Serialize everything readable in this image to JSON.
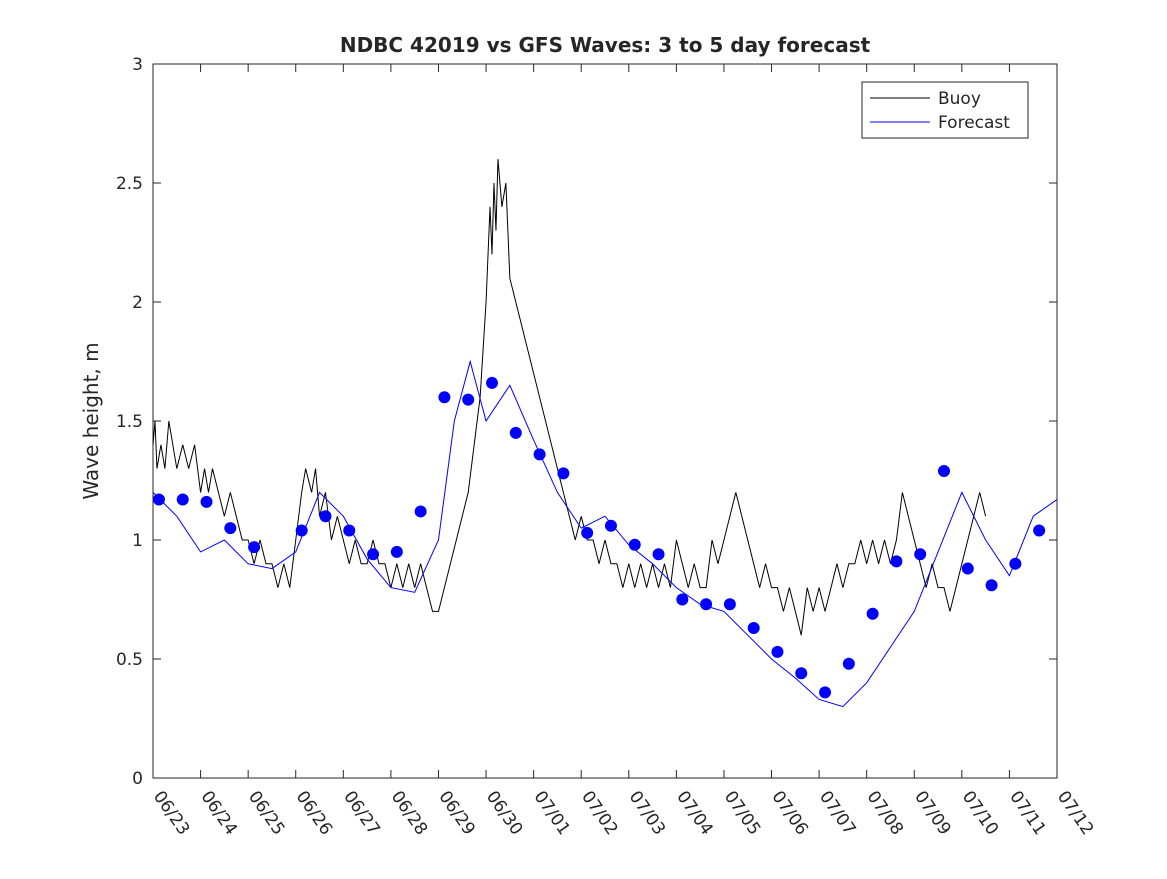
{
  "chart_data": {
    "type": "line",
    "title": "NDBC 42019 vs GFS Waves: 3 to 5 day forecast",
    "xlabel": "",
    "ylabel": "Wave height, m",
    "xlim": [
      "06/23",
      "07/12"
    ],
    "ylim": [
      0,
      3
    ],
    "x_tick_labels": [
      "06/23",
      "06/24",
      "06/25",
      "06/26",
      "06/27",
      "06/28",
      "06/29",
      "06/30",
      "07/01",
      "07/02",
      "07/03",
      "07/04",
      "07/05",
      "07/06",
      "07/07",
      "07/08",
      "07/09",
      "07/10",
      "07/11",
      "07/12"
    ],
    "y_tick_values": [
      0,
      0.5,
      1,
      1.5,
      2,
      2.5,
      3
    ],
    "y_tick_labels": [
      "0",
      "0.5",
      "1",
      "1.5",
      "2",
      "2.5",
      "3"
    ],
    "grid": false,
    "legend": {
      "position": "top-right",
      "entries": [
        {
          "label": "Buoy",
          "color": "#000000"
        },
        {
          "label": "Forecast",
          "color": "#0000ff"
        }
      ]
    },
    "series": [
      {
        "name": "Buoy",
        "color": "#000000",
        "points": [
          [
            "06/23 00:00",
            1.4
          ],
          [
            "06/23 01:00",
            1.5
          ],
          [
            "06/23 02:00",
            1.3
          ],
          [
            "06/23 04:00",
            1.4
          ],
          [
            "06/23 06:00",
            1.3
          ],
          [
            "06/23 08:00",
            1.5
          ],
          [
            "06/23 10:00",
            1.4
          ],
          [
            "06/23 12:00",
            1.3
          ],
          [
            "06/23 15:00",
            1.4
          ],
          [
            "06/23 18:00",
            1.3
          ],
          [
            "06/23 21:00",
            1.4
          ],
          [
            "06/24 00:00",
            1.2
          ],
          [
            "06/24 02:00",
            1.3
          ],
          [
            "06/24 04:00",
            1.2
          ],
          [
            "06/24 06:00",
            1.3
          ],
          [
            "06/24 09:00",
            1.2
          ],
          [
            "06/24 12:00",
            1.1
          ],
          [
            "06/24 15:00",
            1.2
          ],
          [
            "06/24 18:00",
            1.1
          ],
          [
            "06/24 21:00",
            1.0
          ],
          [
            "06/25 00:00",
            1.0
          ],
          [
            "06/25 03:00",
            0.9
          ],
          [
            "06/25 06:00",
            1.0
          ],
          [
            "06/25 09:00",
            0.9
          ],
          [
            "06/25 12:00",
            0.9
          ],
          [
            "06/25 15:00",
            0.8
          ],
          [
            "06/25 18:00",
            0.9
          ],
          [
            "06/25 21:00",
            0.8
          ],
          [
            "06/26 00:00",
            1.0
          ],
          [
            "06/26 03:00",
            1.2
          ],
          [
            "06/26 05:00",
            1.3
          ],
          [
            "06/26 08:00",
            1.2
          ],
          [
            "06/26 10:00",
            1.3
          ],
          [
            "06/26 12:00",
            1.1
          ],
          [
            "06/26 15:00",
            1.2
          ],
          [
            "06/26 18:00",
            1.0
          ],
          [
            "06/26 21:00",
            1.1
          ],
          [
            "06/27 00:00",
            1.0
          ],
          [
            "06/27 03:00",
            0.9
          ],
          [
            "06/27 06:00",
            1.0
          ],
          [
            "06/27 09:00",
            0.9
          ],
          [
            "06/27 12:00",
            0.9
          ],
          [
            "06/27 15:00",
            1.0
          ],
          [
            "06/27 18:00",
            0.9
          ],
          [
            "06/27 21:00",
            0.9
          ],
          [
            "06/28 00:00",
            0.8
          ],
          [
            "06/28 03:00",
            0.9
          ],
          [
            "06/28 06:00",
            0.8
          ],
          [
            "06/28 09:00",
            0.9
          ],
          [
            "06/28 12:00",
            0.8
          ],
          [
            "06/28 15:00",
            0.9
          ],
          [
            "06/28 18:00",
            0.8
          ],
          [
            "06/28 21:00",
            0.7
          ],
          [
            "06/29 00:00",
            0.7
          ],
          [
            "06/29 03:00",
            0.8
          ],
          [
            "06/29 06:00",
            0.9
          ],
          [
            "06/29 09:00",
            1.0
          ],
          [
            "06/29 12:00",
            1.1
          ],
          [
            "06/29 15:00",
            1.2
          ],
          [
            "06/29 18:00",
            1.4
          ],
          [
            "06/29 21:00",
            1.6
          ],
          [
            "06/30 00:00",
            2.0
          ],
          [
            "06/30 02:00",
            2.4
          ],
          [
            "06/30 03:00",
            2.2
          ],
          [
            "06/30 04:00",
            2.5
          ],
          [
            "06/30 05:00",
            2.3
          ],
          [
            "06/30 06:00",
            2.6
          ],
          [
            "06/30 08:00",
            2.4
          ],
          [
            "06/30 10:00",
            2.5
          ],
          [
            "06/30 12:00",
            2.1
          ],
          [
            "06/30 15:00",
            2.0
          ],
          [
            "06/30 18:00",
            1.9
          ],
          [
            "06/30 21:00",
            1.8
          ],
          [
            "07/01 00:00",
            1.7
          ],
          [
            "07/01 03:00",
            1.6
          ],
          [
            "07/01 06:00",
            1.5
          ],
          [
            "07/01 09:00",
            1.4
          ],
          [
            "07/01 12:00",
            1.3
          ],
          [
            "07/01 15:00",
            1.2
          ],
          [
            "07/01 18:00",
            1.1
          ],
          [
            "07/01 21:00",
            1.0
          ],
          [
            "07/02 00:00",
            1.1
          ],
          [
            "07/02 03:00",
            1.0
          ],
          [
            "07/02 06:00",
            1.0
          ],
          [
            "07/02 09:00",
            0.9
          ],
          [
            "07/02 12:00",
            1.0
          ],
          [
            "07/02 15:00",
            0.9
          ],
          [
            "07/02 18:00",
            0.9
          ],
          [
            "07/02 21:00",
            0.8
          ],
          [
            "07/03 00:00",
            0.9
          ],
          [
            "07/03 03:00",
            0.8
          ],
          [
            "07/03 06:00",
            0.9
          ],
          [
            "07/03 09:00",
            0.8
          ],
          [
            "07/03 12:00",
            0.9
          ],
          [
            "07/03 15:00",
            0.8
          ],
          [
            "07/03 18:00",
            0.9
          ],
          [
            "07/03 21:00",
            0.8
          ],
          [
            "07/04 00:00",
            1.0
          ],
          [
            "07/04 03:00",
            0.9
          ],
          [
            "07/04 06:00",
            0.8
          ],
          [
            "07/04 09:00",
            0.9
          ],
          [
            "07/04 12:00",
            0.8
          ],
          [
            "07/04 15:00",
            0.8
          ],
          [
            "07/04 18:00",
            1.0
          ],
          [
            "07/04 21:00",
            0.9
          ],
          [
            "07/05 00:00",
            1.0
          ],
          [
            "07/05 03:00",
            1.1
          ],
          [
            "07/05 06:00",
            1.2
          ],
          [
            "07/05 09:00",
            1.1
          ],
          [
            "07/05 12:00",
            1.0
          ],
          [
            "07/05 15:00",
            0.9
          ],
          [
            "07/05 18:00",
            0.8
          ],
          [
            "07/05 21:00",
            0.9
          ],
          [
            "07/06 00:00",
            0.8
          ],
          [
            "07/06 03:00",
            0.8
          ],
          [
            "07/06 06:00",
            0.7
          ],
          [
            "07/06 09:00",
            0.8
          ],
          [
            "07/06 12:00",
            0.7
          ],
          [
            "07/06 15:00",
            0.6
          ],
          [
            "07/06 18:00",
            0.8
          ],
          [
            "07/06 21:00",
            0.7
          ],
          [
            "07/07 00:00",
            0.8
          ],
          [
            "07/07 03:00",
            0.7
          ],
          [
            "07/07 06:00",
            0.8
          ],
          [
            "07/07 09:00",
            0.9
          ],
          [
            "07/07 12:00",
            0.8
          ],
          [
            "07/07 15:00",
            0.9
          ],
          [
            "07/07 18:00",
            0.9
          ],
          [
            "07/07 21:00",
            1.0
          ],
          [
            "07/08 00:00",
            0.9
          ],
          [
            "07/08 03:00",
            1.0
          ],
          [
            "07/08 06:00",
            0.9
          ],
          [
            "07/08 09:00",
            1.0
          ],
          [
            "07/08 12:00",
            0.9
          ],
          [
            "07/08 15:00",
            1.0
          ],
          [
            "07/08 18:00",
            1.2
          ],
          [
            "07/08 21:00",
            1.1
          ],
          [
            "07/09 00:00",
            1.0
          ],
          [
            "07/09 03:00",
            0.9
          ],
          [
            "07/09 06:00",
            0.8
          ],
          [
            "07/09 09:00",
            0.9
          ],
          [
            "07/09 12:00",
            0.8
          ],
          [
            "07/09 15:00",
            0.8
          ],
          [
            "07/09 18:00",
            0.7
          ],
          [
            "07/09 21:00",
            0.8
          ],
          [
            "07/10 00:00",
            0.9
          ],
          [
            "07/10 03:00",
            1.0
          ],
          [
            "07/10 06:00",
            1.1
          ],
          [
            "07/10 09:00",
            1.2
          ],
          [
            "07/10 12:00",
            1.1
          ]
        ]
      },
      {
        "name": "Forecast",
        "color": "#0000ff",
        "points": [
          [
            "06/23 00:00",
            1.2
          ],
          [
            "06/23 12:00",
            1.1
          ],
          [
            "06/24 00:00",
            0.95
          ],
          [
            "06/24 12:00",
            1.0
          ],
          [
            "06/25 00:00",
            0.9
          ],
          [
            "06/25 12:00",
            0.88
          ],
          [
            "06/26 00:00",
            0.95
          ],
          [
            "06/26 12:00",
            1.2
          ],
          [
            "06/27 00:00",
            1.1
          ],
          [
            "06/27 12:00",
            0.92
          ],
          [
            "06/28 00:00",
            0.8
          ],
          [
            "06/28 12:00",
            0.78
          ],
          [
            "06/29 00:00",
            1.0
          ],
          [
            "06/29 08:00",
            1.5
          ],
          [
            "06/29 16:00",
            1.75
          ],
          [
            "06/30 00:00",
            1.5
          ],
          [
            "06/30 12:00",
            1.65
          ],
          [
            "07/01 00:00",
            1.42
          ],
          [
            "07/01 12:00",
            1.2
          ],
          [
            "07/02 00:00",
            1.05
          ],
          [
            "07/02 12:00",
            1.1
          ],
          [
            "07/03 00:00",
            0.98
          ],
          [
            "07/03 12:00",
            0.9
          ],
          [
            "07/04 00:00",
            0.8
          ],
          [
            "07/04 12:00",
            0.73
          ],
          [
            "07/05 00:00",
            0.7
          ],
          [
            "07/05 12:00",
            0.6
          ],
          [
            "07/06 00:00",
            0.5
          ],
          [
            "07/06 12:00",
            0.42
          ],
          [
            "07/07 00:00",
            0.33
          ],
          [
            "07/07 12:00",
            0.3
          ],
          [
            "07/08 00:00",
            0.4
          ],
          [
            "07/08 12:00",
            0.55
          ],
          [
            "07/09 00:00",
            0.7
          ],
          [
            "07/09 12:00",
            0.95
          ],
          [
            "07/10 00:00",
            1.2
          ],
          [
            "07/10 12:00",
            1.0
          ],
          [
            "07/11 00:00",
            0.85
          ],
          [
            "07/11 12:00",
            1.1
          ],
          [
            "07/12 00:00",
            1.17
          ]
        ]
      }
    ],
    "forecast_markers": [
      [
        "06/23 03:00",
        1.17
      ],
      [
        "06/23 15:00",
        1.17
      ],
      [
        "06/24 03:00",
        1.16
      ],
      [
        "06/24 15:00",
        1.05
      ],
      [
        "06/25 03:00",
        0.97
      ],
      [
        "06/26 03:00",
        1.04
      ],
      [
        "06/26 15:00",
        1.1
      ],
      [
        "06/27 03:00",
        1.04
      ],
      [
        "06/27 15:00",
        0.94
      ],
      [
        "06/28 03:00",
        0.95
      ],
      [
        "06/28 15:00",
        1.12
      ],
      [
        "06/29 03:00",
        1.6
      ],
      [
        "06/29 15:00",
        1.59
      ],
      [
        "06/30 03:00",
        1.66
      ],
      [
        "06/30 15:00",
        1.45
      ],
      [
        "07/01 03:00",
        1.36
      ],
      [
        "07/01 15:00",
        1.28
      ],
      [
        "07/02 03:00",
        1.03
      ],
      [
        "07/02 15:00",
        1.06
      ],
      [
        "07/03 03:00",
        0.98
      ],
      [
        "07/03 15:00",
        0.94
      ],
      [
        "07/04 03:00",
        0.75
      ],
      [
        "07/04 15:00",
        0.73
      ],
      [
        "07/05 03:00",
        0.73
      ],
      [
        "07/05 15:00",
        0.63
      ],
      [
        "07/06 03:00",
        0.53
      ],
      [
        "07/06 15:00",
        0.44
      ],
      [
        "07/07 03:00",
        0.36
      ],
      [
        "07/07 15:00",
        0.48
      ],
      [
        "07/08 03:00",
        0.69
      ],
      [
        "07/08 15:00",
        0.91
      ],
      [
        "07/09 03:00",
        0.94
      ],
      [
        "07/09 15:00",
        1.29
      ],
      [
        "07/10 03:00",
        0.88
      ],
      [
        "07/10 15:00",
        0.81
      ],
      [
        "07/11 03:00",
        0.9
      ],
      [
        "07/11 15:00",
        1.04
      ]
    ]
  }
}
